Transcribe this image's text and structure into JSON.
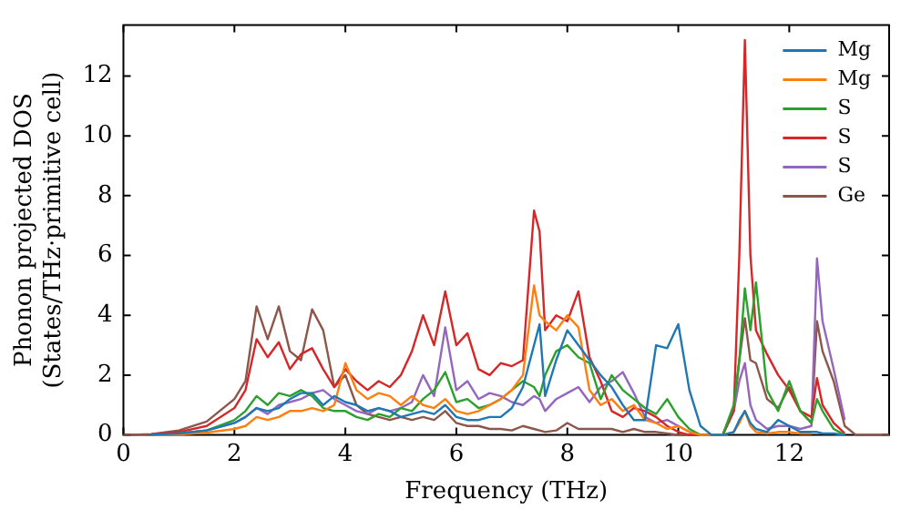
{
  "chart_data": {
    "type": "line",
    "xlabel": "Frequency (THz)",
    "ylabel": "Phonon projected DOS\n(States/THz·primitive cell)",
    "xlim": [
      0,
      13.8
    ],
    "xticks": [
      0,
      2,
      4,
      6,
      8,
      10,
      12
    ],
    "ylim": [
      0,
      13.7
    ],
    "yticks": [
      0,
      2,
      4,
      6,
      8,
      10,
      12
    ],
    "grid": false,
    "legend": "top right",
    "marker": "none",
    "line_style": "solid",
    "x": [
      0,
      0.5,
      1,
      1.5,
      2,
      2.2,
      2.4,
      2.6,
      2.8,
      3,
      3.2,
      3.4,
      3.6,
      3.8,
      4,
      4.2,
      4.4,
      4.6,
      4.8,
      5,
      5.2,
      5.4,
      5.6,
      5.8,
      6,
      6.2,
      6.4,
      6.6,
      6.8,
      7,
      7.2,
      7.4,
      7.5,
      7.6,
      7.8,
      8,
      8.2,
      8.4,
      8.6,
      8.8,
      9,
      9.2,
      9.4,
      9.6,
      9.8,
      10,
      10.2,
      10.4,
      10.6,
      10.8,
      11,
      11.1,
      11.2,
      11.3,
      11.4,
      11.6,
      11.8,
      12,
      12.2,
      12.4,
      12.5,
      12.6,
      12.8,
      13,
      13.2,
      13.8
    ],
    "series": [
      {
        "name": "Mg",
        "color": "#1f77b4",
        "values": [
          null,
          0.01,
          0.05,
          0.15,
          0.4,
          0.6,
          0.9,
          0.8,
          0.9,
          1.2,
          1.4,
          1.4,
          1.0,
          1.3,
          1.1,
          1.0,
          0.8,
          0.9,
          0.8,
          0.6,
          0.7,
          0.8,
          0.7,
          1.0,
          0.6,
          0.5,
          0.5,
          0.6,
          0.6,
          0.9,
          1.6,
          3.0,
          3.7,
          1.3,
          2.5,
          3.5,
          3.0,
          2.5,
          2.0,
          1.6,
          1.0,
          0.5,
          0.5,
          3.0,
          2.9,
          3.7,
          1.5,
          0.3,
          0,
          0,
          0.1,
          0.5,
          0.8,
          0.4,
          0.2,
          0.1,
          0.5,
          0.3,
          0.1,
          0.1,
          0.1,
          0.05,
          0.05,
          0,
          null,
          null
        ]
      },
      {
        "name": "Mg",
        "color": "#ff7f0e",
        "values": [
          null,
          0,
          0.02,
          0.08,
          0.2,
          0.3,
          0.6,
          0.5,
          0.6,
          0.8,
          0.8,
          0.9,
          0.8,
          1.0,
          2.4,
          1.5,
          1.2,
          1.4,
          1.3,
          1.0,
          1.3,
          1.0,
          0.9,
          1.2,
          0.8,
          0.7,
          0.8,
          1.0,
          1.2,
          1.5,
          2.0,
          5.0,
          4.0,
          3.8,
          3.5,
          4.0,
          3.6,
          1.5,
          1.0,
          1.2,
          0.8,
          1.0,
          0.5,
          0.4,
          0.2,
          0.3,
          0.1,
          0,
          0,
          0,
          0.1,
          0.4,
          0.8,
          0.3,
          0.1,
          0.05,
          0.1,
          0.1,
          0.05,
          0.05,
          null,
          null,
          null,
          null,
          null,
          null
        ]
      },
      {
        "name": "S",
        "color": "#2ca02c",
        "values": [
          null,
          null,
          0.05,
          0.15,
          0.5,
          0.8,
          1.3,
          1.0,
          1.4,
          1.3,
          1.5,
          1.3,
          0.9,
          0.8,
          0.8,
          0.6,
          0.5,
          0.7,
          0.6,
          0.9,
          0.8,
          1.2,
          1.5,
          2.1,
          1.1,
          1.2,
          0.9,
          1.0,
          1.2,
          1.5,
          1.8,
          1.6,
          1.3,
          2.0,
          2.8,
          3.0,
          2.6,
          2.4,
          1.2,
          2.0,
          1.5,
          1.2,
          0.9,
          0.7,
          1.2,
          0.6,
          0.2,
          0,
          0,
          0,
          1.0,
          2.5,
          4.9,
          3.5,
          5.1,
          1.5,
          0.8,
          1.8,
          0.8,
          0.4,
          1.2,
          0.8,
          0.2,
          0,
          null,
          null
        ]
      },
      {
        "name": "S",
        "color": "#d62728",
        "values": [
          null,
          0.02,
          0.1,
          0.3,
          0.9,
          1.5,
          3.2,
          2.6,
          3.1,
          2.2,
          2.7,
          2.9,
          2.2,
          1.6,
          2.2,
          1.8,
          1.5,
          1.8,
          1.6,
          2.0,
          2.8,
          4.0,
          3.0,
          4.8,
          3.0,
          3.4,
          2.2,
          2.0,
          2.4,
          2.3,
          2.5,
          7.5,
          6.8,
          3.5,
          4.0,
          3.8,
          4.8,
          2.6,
          1.8,
          0.8,
          0.6,
          0.9,
          0.8,
          0.6,
          0.3,
          0.1,
          0,
          0,
          0,
          0,
          0.8,
          6.0,
          13.2,
          6.0,
          3.5,
          2.7,
          2.0,
          1.5,
          0.8,
          0.6,
          1.9,
          1.0,
          0.4,
          0.05,
          null,
          null
        ]
      },
      {
        "name": "S",
        "color": "#9467bd",
        "values": [
          null,
          0.01,
          0.05,
          0.15,
          0.4,
          0.6,
          0.9,
          0.7,
          1.0,
          1.1,
          1.2,
          1.4,
          1.5,
          1.2,
          1.0,
          0.8,
          0.7,
          0.9,
          0.8,
          0.9,
          1.1,
          2.0,
          1.3,
          3.6,
          1.5,
          1.8,
          1.2,
          1.4,
          1.3,
          1.1,
          1.0,
          1.3,
          1.2,
          0.8,
          1.2,
          1.4,
          1.6,
          1.1,
          1.6,
          1.8,
          2.1,
          1.4,
          0.6,
          0.4,
          0.5,
          0.3,
          0.1,
          0,
          0,
          0,
          0.8,
          1.8,
          2.4,
          1.0,
          0.5,
          0.2,
          0.3,
          0.3,
          0.2,
          0.3,
          5.9,
          3.8,
          2.2,
          0.5,
          null,
          null
        ]
      },
      {
        "name": "Ge",
        "color": "#8c564b",
        "values": [
          0,
          0.03,
          0.15,
          0.45,
          1.2,
          1.8,
          4.3,
          3.2,
          4.3,
          2.8,
          2.5,
          4.2,
          3.5,
          1.6,
          2.0,
          1.0,
          0.7,
          0.6,
          0.5,
          0.6,
          0.5,
          0.6,
          0.5,
          0.8,
          0.4,
          0.3,
          0.3,
          0.2,
          0.2,
          0.15,
          0.3,
          0.2,
          0.15,
          0.1,
          0.15,
          0.4,
          0.2,
          0.2,
          0.2,
          0.2,
          0.1,
          0.2,
          0.1,
          0.1,
          0.05,
          0,
          0,
          0,
          0,
          0,
          0.8,
          2.5,
          3.9,
          2.5,
          2.4,
          1.2,
          0.9,
          1.6,
          0.8,
          0.4,
          3.8,
          2.8,
          1.8,
          0.3,
          0,
          0
        ]
      }
    ]
  }
}
